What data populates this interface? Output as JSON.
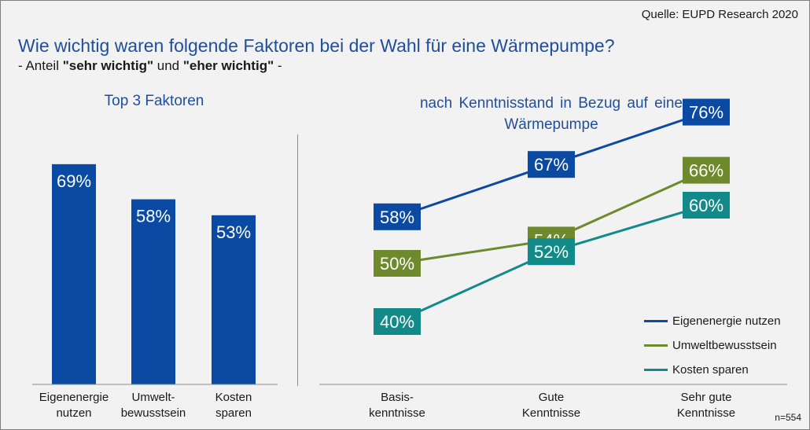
{
  "header": {
    "source": "Quelle: EUPD Research 2020",
    "title": "Wie wichtig waren folgende Faktoren bei der Wahl für eine Wärmepumpe?",
    "subtitle_prefix": "- Anteil ",
    "subtitle_bold1": "\"sehr wichtig\"",
    "subtitle_mid": " und ",
    "subtitle_bold2": "\"eher wichtig\"",
    "subtitle_suffix": " -"
  },
  "footer": {
    "n": "n=554"
  },
  "chart_data": [
    {
      "type": "bar",
      "title": "Top 3 Faktoren",
      "categories": [
        [
          "Eigenenergie",
          "nutzen"
        ],
        [
          "Umwelt-",
          "bewusstsein"
        ],
        [
          "Kosten",
          "sparen"
        ]
      ],
      "values": [
        69,
        58,
        53
      ],
      "value_labels": [
        "69%",
        "58%",
        "53%"
      ],
      "unit": "%",
      "ylim": [
        0,
        100
      ],
      "color": "#0b4aa2"
    },
    {
      "type": "line",
      "title": "nach Kenntnisstand in Bezug auf eine Wärmepumpe",
      "categories": [
        [
          "Basis-",
          "kenntnisse"
        ],
        [
          "Gute",
          "Kenntnisse"
        ],
        [
          "Sehr gute",
          "Kenntnisse"
        ]
      ],
      "series": [
        {
          "name": "Eigenenergie nutzen",
          "values": [
            58,
            67,
            76
          ],
          "labels": [
            "58%",
            "67%",
            "76%"
          ],
          "color": "#0b4aa2"
        },
        {
          "name": "Umweltbewusstsein",
          "values": [
            50,
            54,
            66
          ],
          "labels": [
            "50%",
            "54%",
            "66%"
          ],
          "color": "#6e8a2c"
        },
        {
          "name": "Kosten sparen",
          "values": [
            40,
            52,
            60
          ],
          "labels": [
            "40%",
            "52%",
            "60%"
          ],
          "color": "#128a8a"
        }
      ],
      "legend_position": "bottom-right",
      "unit": "%",
      "ylim": [
        30,
        80
      ]
    }
  ]
}
